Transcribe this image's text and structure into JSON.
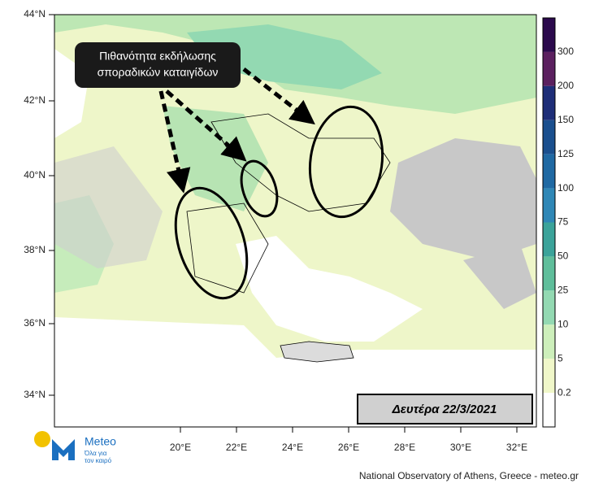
{
  "map": {
    "callout": [
      "Πιθανότητα εκδήλωσης",
      "σποραδικών καταιγίδων"
    ],
    "date": "Δευτέρα 22/3/2021",
    "lat_labels": [
      "44°N",
      "42°N",
      "40°N",
      "38°N",
      "36°N",
      "34°N"
    ],
    "lon_labels": [
      "20°E",
      "22°E",
      "24°E",
      "26°E",
      "28°E",
      "30°E",
      "32°E"
    ],
    "legend": {
      "levels": [
        "300",
        "200",
        "150",
        "125",
        "100",
        "75",
        "50",
        "25",
        "10",
        "5",
        "0.2"
      ],
      "colors": [
        "#2b0a4d",
        "#5b205f",
        "#1e2e78",
        "#1a4f8e",
        "#1f69a3",
        "#2f87b6",
        "#3ba39a",
        "#5fbe9b",
        "#93d9b2",
        "#cdefbb",
        "#f0f7c9",
        "#ffffff"
      ]
    }
  },
  "logo": {
    "name": "Meteo",
    "tagline": [
      "Όλα για",
      "τον καιρό"
    ]
  },
  "footer": "National Observatory of Athens, Greece - meteo.gr"
}
